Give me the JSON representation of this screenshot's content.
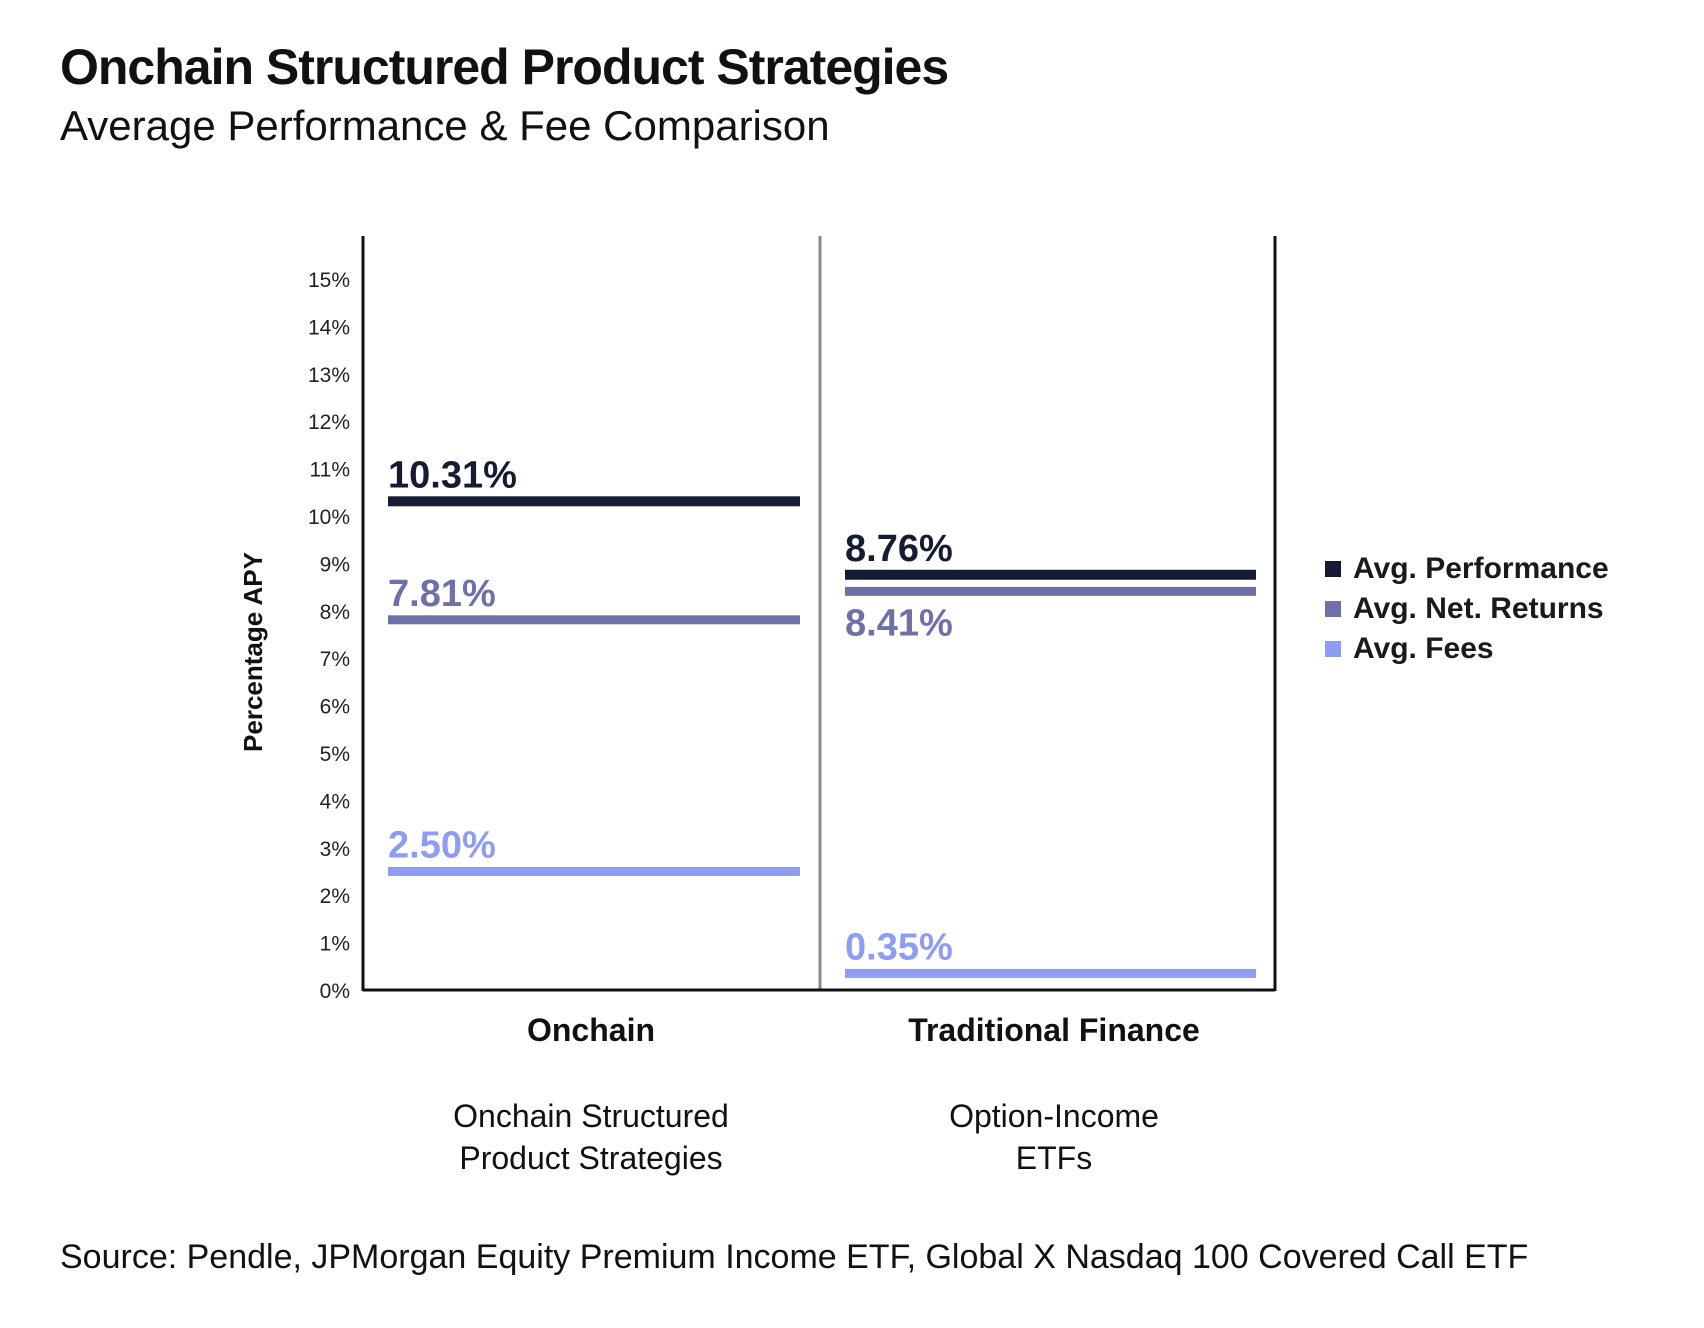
{
  "title": "Onchain Structured Product Strategies",
  "subtitle": "Average Performance & Fee Comparison",
  "source": "Source: Pendle, JPMorgan Equity Premium Income ETF, Global X Nasdaq 100 Covered Call ETF",
  "colors": {
    "performance": "#151b33",
    "net_returns": "#6f70a7",
    "fees": "#8e9cf4",
    "axis": "#111111",
    "divider": "#8a8a8a"
  },
  "chart_data": {
    "type": "bar",
    "ylabel": "Percentage APY",
    "ylim": [
      0,
      15.5
    ],
    "yticks": [
      "0%",
      "1%",
      "2%",
      "3%",
      "4%",
      "5%",
      "6%",
      "7%",
      "8%",
      "9%",
      "10%",
      "11%",
      "12%",
      "13%",
      "14%",
      "15%"
    ],
    "legend_position": "right",
    "categories": [
      {
        "name": "Onchain",
        "description": [
          "Onchain Structured",
          "Product Strategies"
        ]
      },
      {
        "name": "Traditional Finance",
        "description": [
          "Option-Income",
          "ETFs"
        ]
      }
    ],
    "series": [
      {
        "name": "Avg. Performance",
        "color_key": "performance",
        "values": [
          10.31,
          8.76
        ],
        "labels": [
          "10.31%",
          "8.76%"
        ]
      },
      {
        "name": "Avg. Net. Returns",
        "color_key": "net_returns",
        "values": [
          7.81,
          8.41
        ],
        "labels": [
          "7.81%",
          "8.41%"
        ]
      },
      {
        "name": "Avg. Fees",
        "color_key": "fees",
        "values": [
          2.5,
          0.35
        ],
        "labels": [
          "2.50%",
          "0.35%"
        ]
      }
    ]
  }
}
